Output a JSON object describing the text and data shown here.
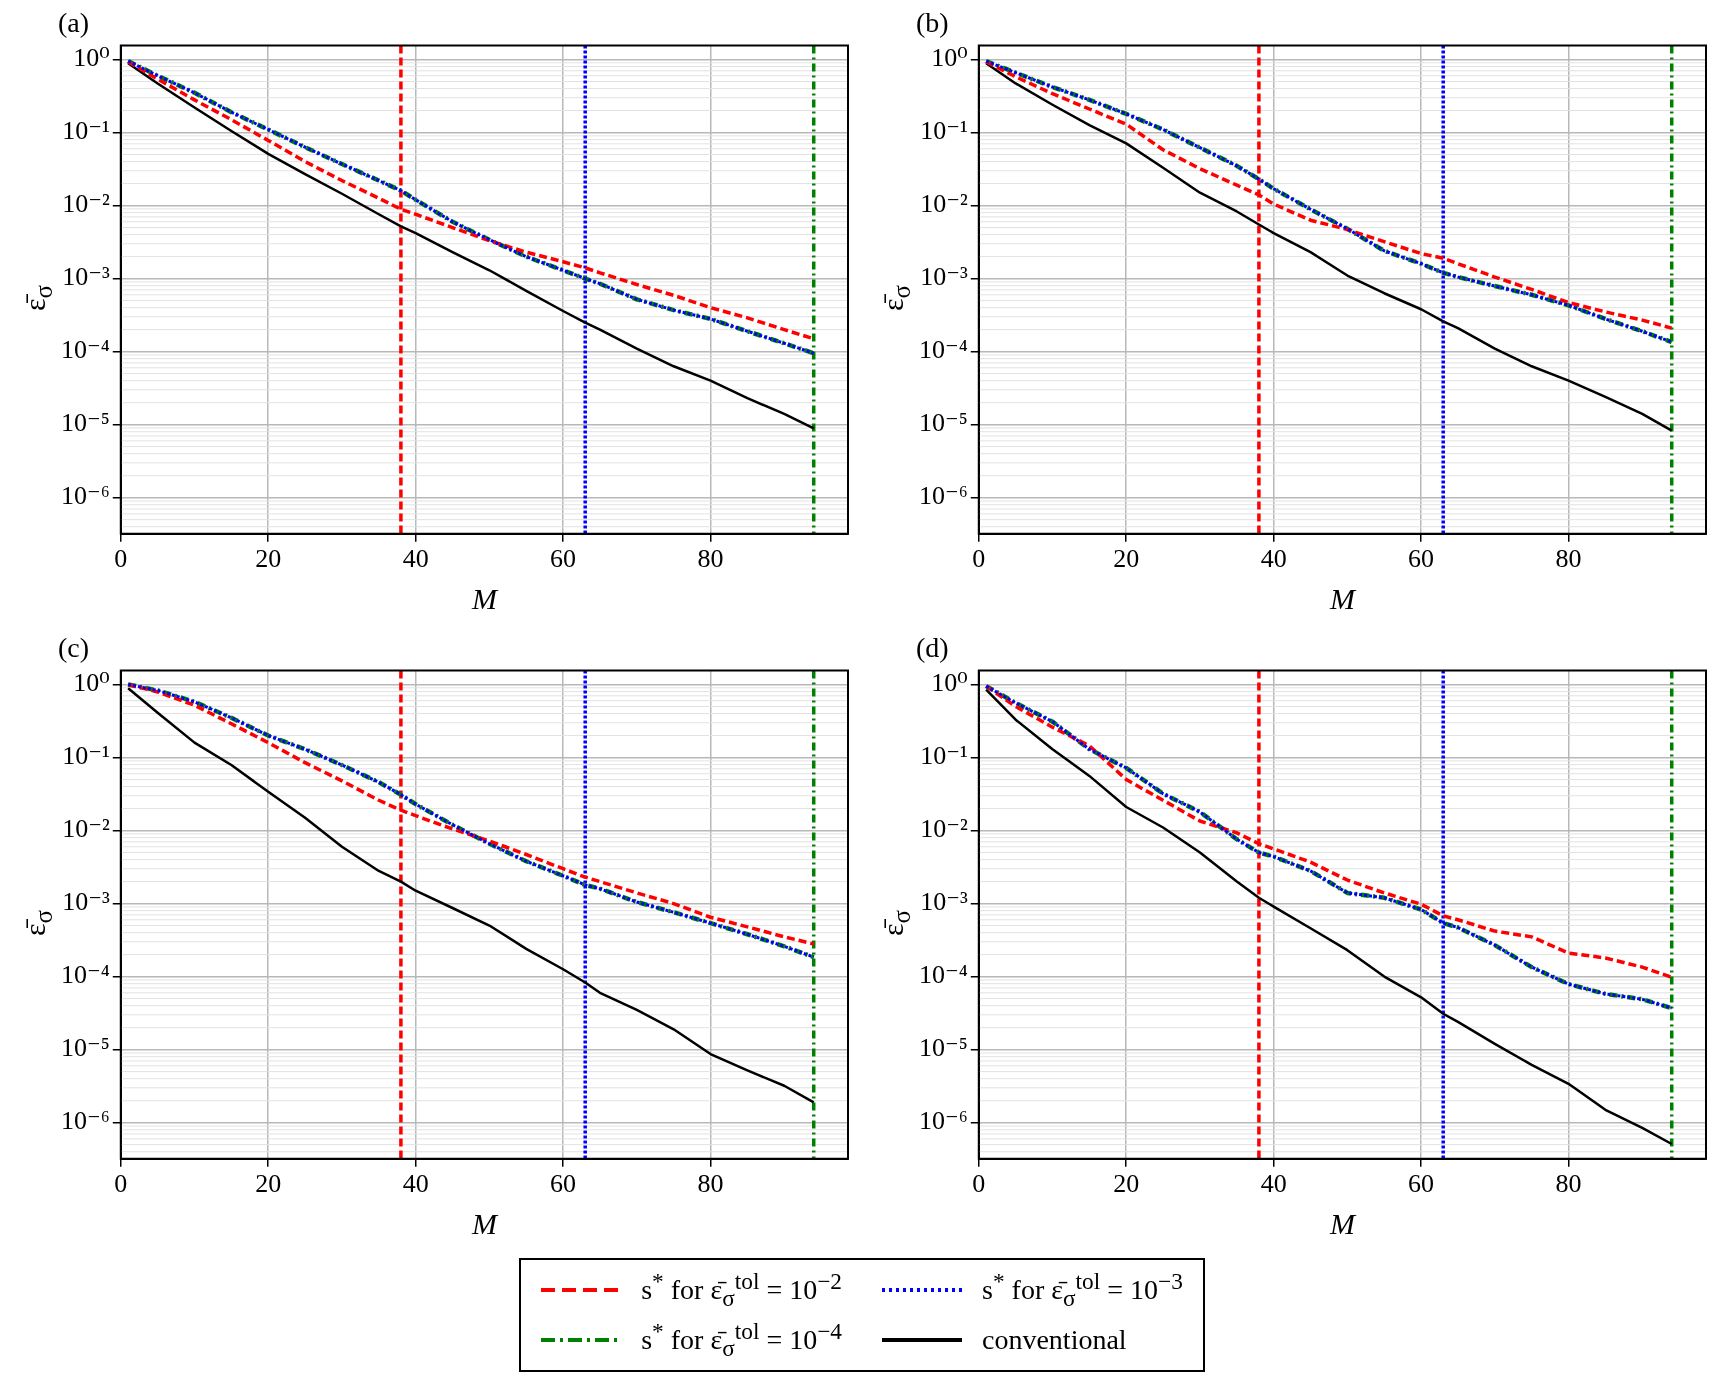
{
  "chart_data": [
    {
      "type": "line",
      "title": "(a)",
      "xlabel": "M",
      "ylabel": "ε̄$_{σ}$",
      "log": "y",
      "grid": true,
      "legend": "bottom",
      "xlim": [
        0,
        98.65
      ],
      "ylim": [
        3.2e-07,
        1.55
      ],
      "xticks": [
        0,
        20,
        40,
        60,
        80
      ],
      "yticks": [
        {
          "value": 1,
          "label": "10⁰"
        },
        {
          "value": 0.1,
          "label": "10⁻¹"
        },
        {
          "value": 0.01,
          "label": "10⁻²"
        },
        {
          "value": 0.001,
          "label": "10⁻³"
        },
        {
          "value": 0.0001,
          "label": "10⁻⁴"
        },
        {
          "value": 1e-05,
          "label": "10⁻⁵"
        },
        {
          "value": 1e-06,
          "label": "10⁻⁶"
        }
      ],
      "x": [
        1,
        5,
        10,
        15,
        20,
        25,
        30,
        35,
        38,
        40,
        45,
        50,
        55,
        60,
        63,
        65,
        70,
        75,
        80,
        85,
        90,
        94
      ],
      "series": [
        {
          "name": "s$^{*}$ for ε̄$_{σ}$$^{tol}$ = 10$^{−2}$",
          "color": "#ff0000",
          "line_style": "dashed",
          "values": [
            0.93,
            0.54,
            0.28,
            0.15,
            0.078,
            0.04,
            0.022,
            0.0126,
            0.0089,
            0.0076,
            0.005,
            0.0033,
            0.0023,
            0.0017,
            0.0014,
            0.0012,
            0.00083,
            0.00059,
            0.0004,
            0.00029,
            0.0002,
            0.00015
          ]
        },
        {
          "name": "s$^{*}$ for ε̄$_{σ}$$^{tol}$ = 10$^{−4}$",
          "color": "#008000",
          "line_style": "dashdot",
          "values": [
            0.95,
            0.6,
            0.35,
            0.19,
            0.11,
            0.063,
            0.037,
            0.022,
            0.016,
            0.012,
            0.006,
            0.0034,
            0.002,
            0.0013,
            0.001,
            0.00085,
            0.00052,
            0.00037,
            0.00028,
            0.00019,
            0.00013,
            9.5e-05
          ]
        },
        {
          "name": "s$^{*}$ for ε̄$_{σ}$$^{tol}$ = 10$^{−3}$",
          "color": "#0000ff",
          "line_style": "dotted",
          "values": [
            0.95,
            0.6,
            0.35,
            0.19,
            0.11,
            0.063,
            0.037,
            0.022,
            0.016,
            0.012,
            0.006,
            0.0034,
            0.002,
            0.0013,
            0.001,
            0.00085,
            0.00052,
            0.00037,
            0.00028,
            0.00019,
            0.00013,
            9.5e-05
          ]
        },
        {
          "name": "conventional",
          "color": "#000000",
          "line_style": "solid",
          "values": [
            0.89,
            0.47,
            0.22,
            0.105,
            0.051,
            0.027,
            0.0145,
            0.0076,
            0.0052,
            0.0042,
            0.0023,
            0.0013,
            0.00068,
            0.00036,
            0.00025,
            0.0002,
            0.00011,
            6.3e-05,
            4e-05,
            2.3e-05,
            1.4e-05,
            8.9e-06
          ]
        }
      ],
      "ref_lines": [
        {
          "axis": "x",
          "value": 38,
          "color": "#ff0000",
          "line_style": "dashed"
        },
        {
          "axis": "x",
          "value": 63,
          "color": "#0000ff",
          "line_style": "dotted"
        },
        {
          "axis": "x",
          "value": 94,
          "color": "#008000",
          "line_style": "dashdot"
        }
      ]
    },
    {
      "type": "line",
      "title": "(b)",
      "xlabel": "M",
      "ylabel": "ε̄$_{σ}$",
      "log": "y",
      "grid": true,
      "xlim": [
        0,
        98.65
      ],
      "ylim": [
        3.2e-07,
        1.55
      ],
      "xticks": [
        0,
        20,
        40,
        60,
        80
      ],
      "yticks": [
        {
          "value": 1,
          "label": "10⁰"
        },
        {
          "value": 0.1,
          "label": "10⁻¹"
        },
        {
          "value": 0.01,
          "label": "10⁻²"
        },
        {
          "value": 0.001,
          "label": "10⁻³"
        },
        {
          "value": 0.0001,
          "label": "10⁻⁴"
        },
        {
          "value": 1e-05,
          "label": "10⁻⁵"
        },
        {
          "value": 1e-06,
          "label": "10⁻⁶"
        }
      ],
      "x": [
        1,
        5,
        10,
        15,
        20,
        25,
        30,
        35,
        38,
        40,
        45,
        50,
        55,
        60,
        63,
        65,
        70,
        75,
        80,
        85,
        90,
        94
      ],
      "series": [
        {
          "name": "s$^{*}$ for ε̄$_{σ}$$^{tol}$ = 10$^{−2}$",
          "color": "#ff0000",
          "line_style": "dashed",
          "values": [
            0.93,
            0.58,
            0.34,
            0.21,
            0.13,
            0.058,
            0.032,
            0.019,
            0.014,
            0.0105,
            0.0063,
            0.0047,
            0.0032,
            0.0022,
            0.0019,
            0.0016,
            0.00105,
            0.00071,
            0.00047,
            0.00035,
            0.00027,
            0.00021
          ]
        },
        {
          "name": "s$^{*}$ for ε̄$_{σ}$$^{tol}$ = 10$^{−4}$",
          "color": "#008000",
          "line_style": "dashdot",
          "values": [
            0.95,
            0.66,
            0.42,
            0.28,
            0.18,
            0.11,
            0.062,
            0.035,
            0.023,
            0.017,
            0.0089,
            0.0048,
            0.0024,
            0.0016,
            0.0012,
            0.00105,
            0.00079,
            0.0006,
            0.00043,
            0.00028,
            0.00019,
            0.000135
          ]
        },
        {
          "name": "s$^{*}$ for ε̄$_{σ}$$^{tol}$ = 10$^{−3}$",
          "color": "#0000ff",
          "line_style": "dotted",
          "values": [
            0.95,
            0.66,
            0.42,
            0.28,
            0.18,
            0.11,
            0.062,
            0.035,
            0.023,
            0.017,
            0.0089,
            0.0048,
            0.0024,
            0.0016,
            0.0012,
            0.00105,
            0.00079,
            0.0006,
            0.00043,
            0.00028,
            0.00019,
            0.000135
          ]
        },
        {
          "name": "conventional",
          "color": "#000000",
          "line_style": "solid",
          "values": [
            0.89,
            0.47,
            0.24,
            0.126,
            0.071,
            0.033,
            0.015,
            0.0083,
            0.0055,
            0.0042,
            0.0023,
            0.0011,
            0.00063,
            0.00038,
            0.00026,
            0.00021,
            0.00011,
            6.3e-05,
            4e-05,
            2.4e-05,
            1.4e-05,
            8.3e-06
          ]
        }
      ],
      "ref_lines": [
        {
          "axis": "x",
          "value": 38,
          "color": "#ff0000",
          "line_style": "dashed"
        },
        {
          "axis": "x",
          "value": 63,
          "color": "#0000ff",
          "line_style": "dotted"
        },
        {
          "axis": "x",
          "value": 94,
          "color": "#008000",
          "line_style": "dashdot"
        }
      ]
    },
    {
      "type": "line",
      "title": "(c)",
      "xlabel": "M",
      "ylabel": "ε̄$_{σ}$",
      "log": "y",
      "grid": true,
      "xlim": [
        0,
        98.65
      ],
      "ylim": [
        3.2e-07,
        1.55
      ],
      "xticks": [
        0,
        20,
        40,
        60,
        80
      ],
      "yticks": [
        {
          "value": 1,
          "label": "10⁰"
        },
        {
          "value": 0.1,
          "label": "10⁻¹"
        },
        {
          "value": 0.01,
          "label": "10⁻²"
        },
        {
          "value": 0.001,
          "label": "10⁻³"
        },
        {
          "value": 0.0001,
          "label": "10⁻⁴"
        },
        {
          "value": 1e-05,
          "label": "10⁻⁵"
        },
        {
          "value": 1e-06,
          "label": "10⁻⁶"
        }
      ],
      "x": [
        1,
        5,
        10,
        15,
        20,
        25,
        30,
        35,
        38,
        40,
        45,
        50,
        55,
        60,
        63,
        65,
        70,
        75,
        80,
        85,
        90,
        94
      ],
      "series": [
        {
          "name": "s$^{*}$ for ε̄$_{σ}$$^{tol}$ = 10$^{−2}$",
          "color": "#ff0000",
          "line_style": "dashed",
          "values": [
            1.0,
            0.79,
            0.52,
            0.29,
            0.16,
            0.085,
            0.048,
            0.026,
            0.019,
            0.016,
            0.0105,
            0.0072,
            0.0047,
            0.003,
            0.0023,
            0.002,
            0.0014,
            0.001,
            0.00065,
            0.00048,
            0.00035,
            0.00028
          ]
        },
        {
          "name": "s$^{*}$ for ε̄$_{σ}$$^{tol}$ = 10$^{−4}$",
          "color": "#008000",
          "line_style": "dashdot",
          "values": [
            1.0,
            0.83,
            0.58,
            0.35,
            0.2,
            0.13,
            0.079,
            0.046,
            0.031,
            0.023,
            0.012,
            0.0066,
            0.0038,
            0.0024,
            0.0018,
            0.0016,
            0.00105,
            0.00076,
            0.00054,
            0.00038,
            0.00026,
            0.000185
          ]
        },
        {
          "name": "s$^{*}$ for ε̄$_{σ}$$^{tol}$ = 10$^{−3}$",
          "color": "#0000ff",
          "line_style": "dotted",
          "values": [
            1.0,
            0.83,
            0.58,
            0.35,
            0.2,
            0.13,
            0.079,
            0.046,
            0.031,
            0.023,
            0.012,
            0.0066,
            0.0038,
            0.0024,
            0.0018,
            0.0016,
            0.00105,
            0.00076,
            0.00054,
            0.00038,
            0.00026,
            0.000185
          ]
        },
        {
          "name": "conventional",
          "color": "#000000",
          "line_style": "solid",
          "values": [
            0.89,
            0.41,
            0.16,
            0.079,
            0.034,
            0.015,
            0.006,
            0.0028,
            0.002,
            0.0015,
            0.00087,
            0.0005,
            0.00024,
            0.000126,
            8.3e-05,
            6e-05,
            3.5e-05,
            1.9e-05,
            8.7e-06,
            5.2e-06,
            3.2e-06,
            1.9e-06
          ]
        }
      ],
      "ref_lines": [
        {
          "axis": "x",
          "value": 38,
          "color": "#ff0000",
          "line_style": "dashed"
        },
        {
          "axis": "x",
          "value": 63,
          "color": "#0000ff",
          "line_style": "dotted"
        },
        {
          "axis": "x",
          "value": 94,
          "color": "#008000",
          "line_style": "dashdot"
        }
      ]
    },
    {
      "type": "line",
      "title": "(d)",
      "xlabel": "M",
      "ylabel": "ε̄$_{σ}$",
      "log": "y",
      "grid": true,
      "xlim": [
        0,
        98.65
      ],
      "ylim": [
        3.2e-07,
        1.55
      ],
      "xticks": [
        0,
        20,
        40,
        60,
        80
      ],
      "yticks": [
        {
          "value": 1,
          "label": "10⁰"
        },
        {
          "value": 0.1,
          "label": "10⁻¹"
        },
        {
          "value": 0.01,
          "label": "10⁻²"
        },
        {
          "value": 0.001,
          "label": "10⁻³"
        },
        {
          "value": 0.0001,
          "label": "10⁻⁴"
        },
        {
          "value": 1e-05,
          "label": "10⁻⁵"
        },
        {
          "value": 1e-06,
          "label": "10⁻⁶"
        }
      ],
      "x": [
        1,
        5,
        10,
        15,
        20,
        25,
        30,
        35,
        38,
        40,
        45,
        50,
        55,
        60,
        63,
        65,
        70,
        75,
        80,
        85,
        90,
        94
      ],
      "series": [
        {
          "name": "s$^{*}$ for ε̄$_{σ}$$^{tol}$ = 10$^{−2}$",
          "color": "#ff0000",
          "line_style": "dashed",
          "values": [
            0.95,
            0.5,
            0.26,
            0.145,
            0.05,
            0.026,
            0.0135,
            0.0093,
            0.0066,
            0.0056,
            0.0037,
            0.0021,
            0.0014,
            0.00098,
            0.00068,
            0.0006,
            0.00042,
            0.00035,
            0.00021,
            0.00018,
            0.000135,
            9.8e-05
          ]
        },
        {
          "name": "s$^{*}$ for ε̄$_{σ}$$^{tol}$ = 10$^{−4}$",
          "color": "#008000",
          "line_style": "dashdot",
          "values": [
            0.95,
            0.56,
            0.31,
            0.13,
            0.072,
            0.032,
            0.018,
            0.0076,
            0.005,
            0.0044,
            0.0028,
            0.0014,
            0.0012,
            0.00083,
            0.00054,
            0.00047,
            0.00027,
            0.000135,
            7.9e-05,
            5.8e-05,
            4.9e-05,
            3.7e-05
          ]
        },
        {
          "name": "s$^{*}$ for ε̄$_{σ}$$^{tol}$ = 10$^{−3}$",
          "color": "#0000ff",
          "line_style": "dotted",
          "values": [
            0.95,
            0.56,
            0.31,
            0.13,
            0.072,
            0.032,
            0.018,
            0.0076,
            0.005,
            0.0044,
            0.0028,
            0.0014,
            0.0012,
            0.00083,
            0.00054,
            0.00047,
            0.00027,
            0.000135,
            7.9e-05,
            5.8e-05,
            4.9e-05,
            3.7e-05
          ]
        },
        {
          "name": "conventional",
          "color": "#000000",
          "line_style": "solid",
          "values": [
            0.85,
            0.33,
            0.13,
            0.056,
            0.021,
            0.011,
            0.005,
            0.002,
            0.0012,
            0.00091,
            0.00046,
            0.00023,
            0.0001,
            5.2e-05,
            3.1e-05,
            2.4e-05,
            1.2e-05,
            6.2e-06,
            3.4e-06,
            1.5e-06,
            8.5e-07,
            5.1e-07
          ]
        }
      ],
      "ref_lines": [
        {
          "axis": "x",
          "value": 38,
          "color": "#ff0000",
          "line_style": "dashed"
        },
        {
          "axis": "x",
          "value": 63,
          "color": "#0000ff",
          "line_style": "dotted"
        },
        {
          "axis": "x",
          "value": 94,
          "color": "#008000",
          "line_style": "dashdot"
        }
      ]
    }
  ]
}
